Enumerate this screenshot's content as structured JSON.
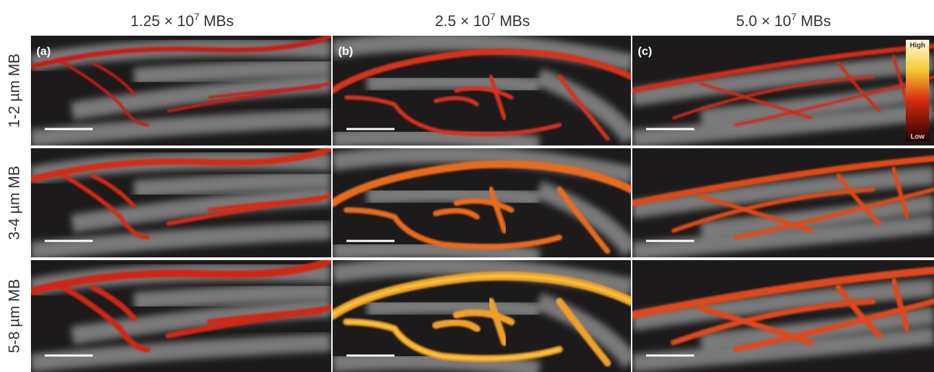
{
  "columns": [
    {
      "prefix": "1.25 × 10",
      "exponent": "7",
      "suffix": "MBs"
    },
    {
      "prefix": "2.5 × 10",
      "exponent": "7",
      "suffix": "MBs"
    },
    {
      "prefix": "5.0 × 10",
      "exponent": "7",
      "suffix": "MBs"
    }
  ],
  "rows": [
    "1-2 µm MB",
    "3-4 µm MB",
    "5-8 µm MB"
  ],
  "panel_labels": [
    "(a)",
    "(b)",
    "(c)"
  ],
  "colorbar": {
    "high": "High",
    "low": "Low"
  }
}
